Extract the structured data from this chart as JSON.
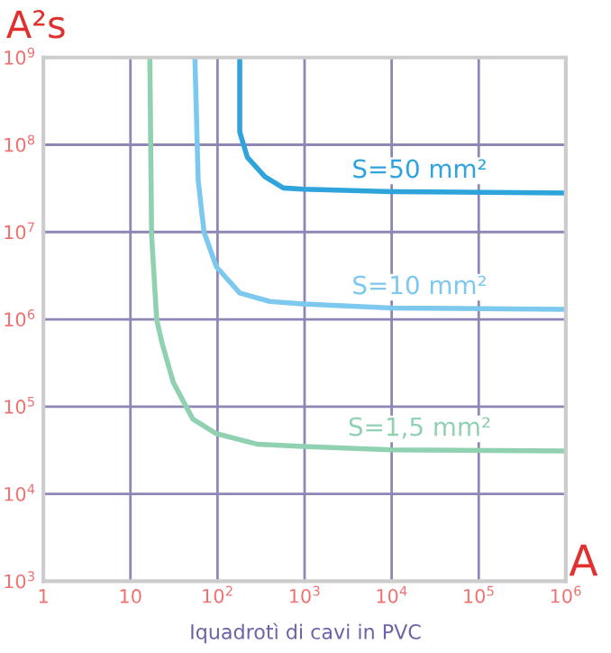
{
  "chart_data": {
    "type": "line",
    "xlabel": "A",
    "ylabel": "A²s",
    "log": "xy",
    "xlim": [
      1,
      1000000
    ],
    "ylim": [
      1000,
      1000000000
    ],
    "xticks": [
      1,
      10,
      {
        "value": 100,
        "label": "10$^{2}$"
      },
      {
        "value": 1000,
        "label": "10$^{3}$"
      },
      {
        "value": 10000,
        "label": "10$^{4}$"
      },
      {
        "value": 100000,
        "label": "10$^{5}$"
      },
      {
        "value": 1000000,
        "label": "10$^{6}$"
      }
    ],
    "yticks": [
      {
        "value": 1000,
        "label": "10$^{3}$"
      },
      {
        "value": 10000,
        "label": "10$^{4}$"
      },
      {
        "value": 100000,
        "label": "10$^{5}$"
      },
      {
        "value": 1000000,
        "label": "10$^{6}$"
      },
      {
        "value": 10000000,
        "label": "10$^{7}$"
      },
      {
        "value": 100000000,
        "label": "10$^{8}$"
      },
      {
        "value": 1000000000,
        "label": "10$^{9}$"
      }
    ],
    "grid": true,
    "legend": false,
    "marker": "none",
    "line_style": "solid",
    "annotations": [
      "Iquadrotì di cavi in PVC"
    ],
    "series": [
      {
        "name": "S=50 mm²",
        "color": "#2ea3dc",
        "x": [
          180,
          180,
          220,
          350,
          570,
          960,
          10000,
          1000000
        ],
        "values": [
          1000000000,
          140000000,
          72000000,
          43000000,
          32000000,
          31000000,
          29000000,
          28000000
        ]
      },
      {
        "name": "S=10 mm²",
        "color": "#7cc8ee",
        "x": [
          55,
          60,
          70,
          97,
          180,
          400,
          960,
          10000,
          1000000
        ],
        "values": [
          1000000000,
          39000000,
          10000000,
          4000000,
          2000000,
          1600000,
          1500000,
          1350000,
          1300000
        ]
      },
      {
        "name": "S=1,5 mm²",
        "color": "#8fd1b0",
        "x": [
          16.7,
          17.5,
          20,
          23,
          31,
          52,
          97,
          290,
          960,
          10000,
          1000000
        ],
        "values": [
          1000000000,
          9300000,
          1000000,
          540000,
          190000,
          72000,
          49000,
          37000,
          35000,
          32000,
          31000
        ]
      }
    ]
  }
}
